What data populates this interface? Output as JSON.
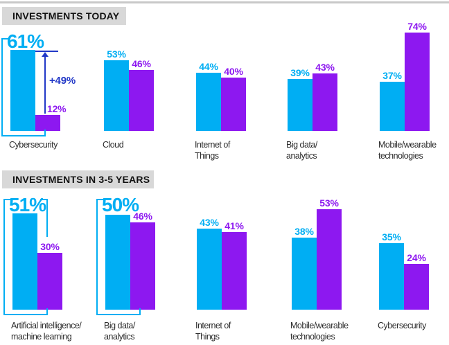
{
  "colors": {
    "cyan": "#00AEF3",
    "purple": "#8D18F0",
    "arrow_blue": "#2238C7",
    "header_bg": "#D8D8D8",
    "header_text": "#121212",
    "category_text": "#2B2B2B",
    "top_rule": "#C8C8C8",
    "background": "#FFFFFF"
  },
  "chart_data": [
    {
      "type": "bar",
      "title": "INVESTMENTS TODAY",
      "unit": "%",
      "axes_visible": false,
      "legend": "none",
      "categories": [
        "Cybersecurity",
        "Cloud",
        "Internet of Things",
        "Big data/analytics",
        "Mobile/wearable technologies"
      ],
      "category_lines": [
        [
          "Cybersecurity"
        ],
        [
          "Cloud"
        ],
        [
          "Internet of",
          "Things"
        ],
        [
          "Big data/",
          "analytics"
        ],
        [
          "Mobile/wearable",
          "technologies"
        ]
      ],
      "series": [
        {
          "name": "series-cyan",
          "color": "#00AEF3",
          "values": [
            61,
            53,
            44,
            39,
            37
          ]
        },
        {
          "name": "series-purple",
          "color": "#8D18F0",
          "values": [
            12,
            46,
            40,
            43,
            74
          ]
        }
      ],
      "emphasis": [
        {
          "category_index": 0,
          "series": "series-cyan",
          "big_label": "61%",
          "under_bracket": true,
          "label_tick_left": true,
          "label_tick_right": false,
          "arrow_label": "+49%"
        }
      ]
    },
    {
      "type": "bar",
      "title": "INVESTMENTS IN 3-5 YEARS",
      "unit": "%",
      "axes_visible": false,
      "legend": "none",
      "categories": [
        "Artificial intelligence/machine learning",
        "Big data/analytics",
        "Internet of Things",
        "Mobile/wearable technologies",
        "Cybersecurity"
      ],
      "category_lines": [
        [
          "Artificial intelligence/",
          "machine learning"
        ],
        [
          "Big data/",
          "analytics"
        ],
        [
          "Internet of",
          "Things"
        ],
        [
          "Mobile/wearable",
          "technologies"
        ],
        [
          "Cybersecurity"
        ]
      ],
      "series": [
        {
          "name": "series-cyan",
          "color": "#00AEF3",
          "values": [
            51,
            50,
            43,
            38,
            35
          ]
        },
        {
          "name": "series-purple",
          "color": "#8D18F0",
          "values": [
            30,
            46,
            41,
            53,
            24
          ]
        }
      ],
      "emphasis": [
        {
          "category_index": 0,
          "series": "series-cyan",
          "big_label": "51%",
          "under_bracket": true,
          "label_tick_left": true,
          "label_tick_right": true,
          "arrow_label": null
        },
        {
          "category_index": 1,
          "series": "series-cyan",
          "big_label": "50%",
          "under_bracket": true,
          "label_tick_left": true,
          "label_tick_right": false,
          "arrow_label": null
        }
      ]
    }
  ]
}
